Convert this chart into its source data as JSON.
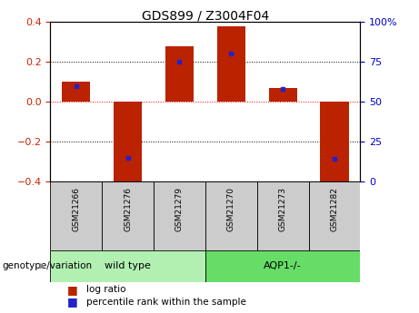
{
  "title": "GDS899 / Z3004F04",
  "samples": [
    "GSM21266",
    "GSM21276",
    "GSM21279",
    "GSM21270",
    "GSM21273",
    "GSM21282"
  ],
  "log_ratios": [
    0.1,
    -0.42,
    0.28,
    0.38,
    0.07,
    -0.45
  ],
  "percentile_ranks": [
    60,
    15,
    75,
    80,
    58,
    14
  ],
  "groups": [
    {
      "label": "wild type",
      "indices": [
        0,
        1,
        2
      ],
      "color": "#b2f0b2"
    },
    {
      "label": "AQP1-/-",
      "indices": [
        3,
        4,
        5
      ],
      "color": "#66dd66"
    }
  ],
  "bar_color": "#bb2200",
  "blue_color": "#2222cc",
  "bar_width": 0.55,
  "ylim": [
    -0.4,
    0.4
  ],
  "yticks_left": [
    -0.4,
    -0.2,
    0.0,
    0.2,
    0.4
  ],
  "yticks_right": [
    0,
    25,
    50,
    75,
    100
  ],
  "background_color": "#ffffff",
  "genotype_label": "genotype/variation",
  "legend_log_ratio": "log ratio",
  "legend_percentile": "percentile rank within the sample",
  "tick_color_left": "#cc2200",
  "tick_color_right": "#0000cc",
  "sample_box_color": "#cccccc",
  "title_fontsize": 10,
  "tick_fontsize": 8,
  "sample_fontsize": 6.5,
  "group_fontsize": 8,
  "legend_fontsize": 7.5,
  "genotype_fontsize": 7.5
}
